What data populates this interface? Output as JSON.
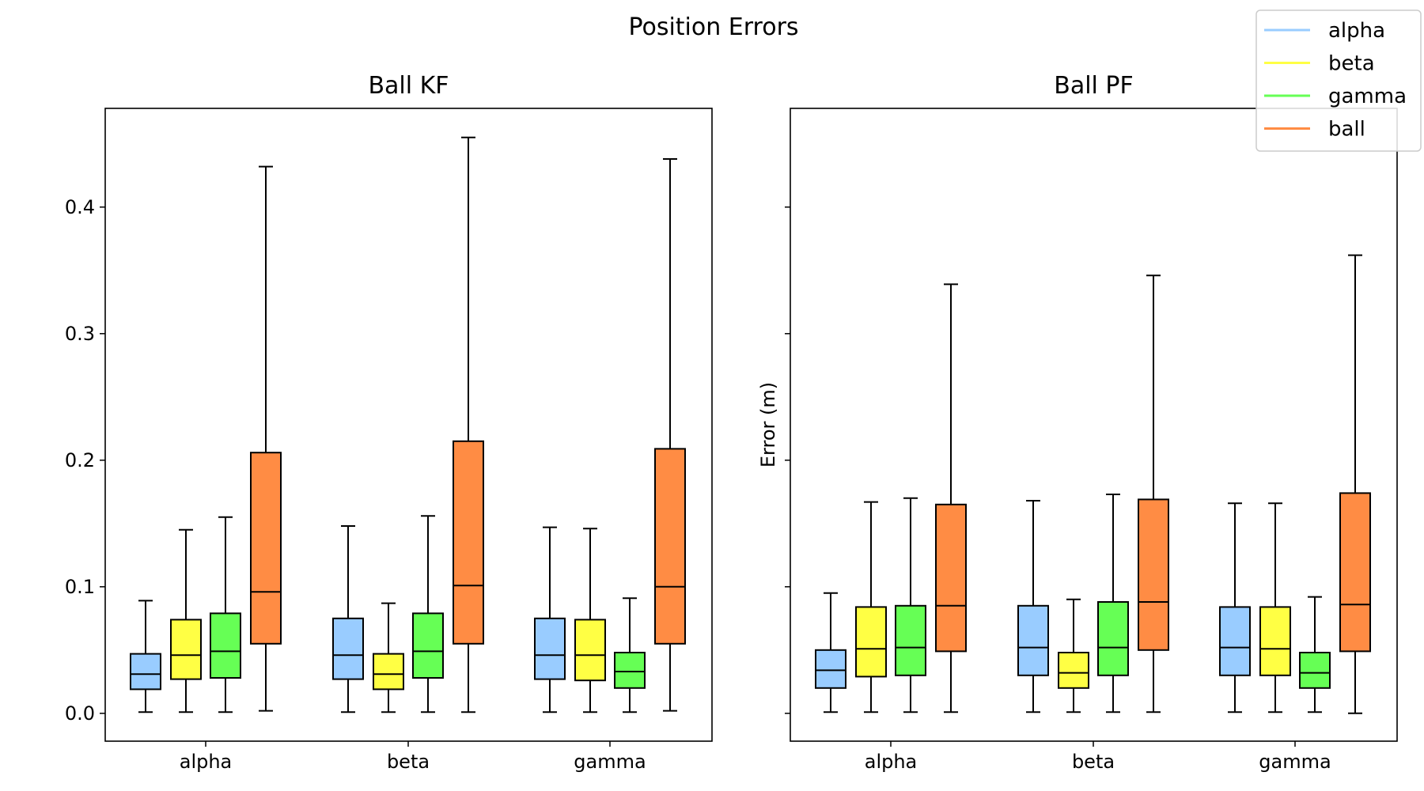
{
  "chart_data": {
    "type": "box",
    "title": "Position Errors",
    "groups": [
      "alpha",
      "beta",
      "gamma"
    ],
    "colors": {
      "alpha": "#99ccff",
      "beta": "#ffff44",
      "gamma": "#66ff55",
      "ball": "#ff8c44"
    },
    "legend": {
      "placement": "top-right",
      "entries": [
        {
          "label": "alpha",
          "color": "#99ccff"
        },
        {
          "label": "beta",
          "color": "#ffff44"
        },
        {
          "label": "gamma",
          "color": "#66ff55"
        },
        {
          "label": "ball",
          "color": "#ff8c44"
        }
      ]
    },
    "ylim": [
      -0.022,
      0.478
    ],
    "yticks": [
      0.0,
      0.1,
      0.2,
      0.3,
      0.4
    ],
    "ytick_labels": [
      "0.0",
      "0.1",
      "0.2",
      "0.3",
      "0.4"
    ],
    "subplots": [
      {
        "title": "Ball KF",
        "ylabel": "",
        "show_ytick_labels": true,
        "data": {
          "alpha": [
            {
              "series": "alpha",
              "whislo": 0.001,
              "q1": 0.019,
              "med": 0.031,
              "q3": 0.047,
              "whishi": 0.089
            },
            {
              "series": "beta",
              "whislo": 0.001,
              "q1": 0.027,
              "med": 0.046,
              "q3": 0.074,
              "whishi": 0.145
            },
            {
              "series": "gamma",
              "whislo": 0.001,
              "q1": 0.028,
              "med": 0.049,
              "q3": 0.079,
              "whishi": 0.155
            },
            {
              "series": "ball",
              "whislo": 0.002,
              "q1": 0.055,
              "med": 0.096,
              "q3": 0.206,
              "whishi": 0.432
            }
          ],
          "beta": [
            {
              "series": "alpha",
              "whislo": 0.001,
              "q1": 0.027,
              "med": 0.046,
              "q3": 0.075,
              "whishi": 0.148
            },
            {
              "series": "beta",
              "whislo": 0.001,
              "q1": 0.019,
              "med": 0.031,
              "q3": 0.047,
              "whishi": 0.087
            },
            {
              "series": "gamma",
              "whislo": 0.001,
              "q1": 0.028,
              "med": 0.049,
              "q3": 0.079,
              "whishi": 0.156
            },
            {
              "series": "ball",
              "whislo": 0.001,
              "q1": 0.055,
              "med": 0.101,
              "q3": 0.215,
              "whishi": 0.455
            }
          ],
          "gamma": [
            {
              "series": "alpha",
              "whislo": 0.001,
              "q1": 0.027,
              "med": 0.046,
              "q3": 0.075,
              "whishi": 0.147
            },
            {
              "series": "beta",
              "whislo": 0.001,
              "q1": 0.026,
              "med": 0.046,
              "q3": 0.074,
              "whishi": 0.146
            },
            {
              "series": "gamma",
              "whislo": 0.001,
              "q1": 0.02,
              "med": 0.033,
              "q3": 0.048,
              "whishi": 0.091
            },
            {
              "series": "ball",
              "whislo": 0.002,
              "q1": 0.055,
              "med": 0.1,
              "q3": 0.209,
              "whishi": 0.438
            }
          ]
        }
      },
      {
        "title": "Ball PF",
        "ylabel": "Error (m)",
        "show_ytick_labels": false,
        "data": {
          "alpha": [
            {
              "series": "alpha",
              "whislo": 0.001,
              "q1": 0.02,
              "med": 0.034,
              "q3": 0.05,
              "whishi": 0.095
            },
            {
              "series": "beta",
              "whislo": 0.001,
              "q1": 0.029,
              "med": 0.051,
              "q3": 0.084,
              "whishi": 0.167
            },
            {
              "series": "gamma",
              "whislo": 0.001,
              "q1": 0.03,
              "med": 0.052,
              "q3": 0.085,
              "whishi": 0.17
            },
            {
              "series": "ball",
              "whislo": 0.001,
              "q1": 0.049,
              "med": 0.085,
              "q3": 0.165,
              "whishi": 0.339
            }
          ],
          "beta": [
            {
              "series": "alpha",
              "whislo": 0.001,
              "q1": 0.03,
              "med": 0.052,
              "q3": 0.085,
              "whishi": 0.168
            },
            {
              "series": "beta",
              "whislo": 0.001,
              "q1": 0.02,
              "med": 0.032,
              "q3": 0.048,
              "whishi": 0.09
            },
            {
              "series": "gamma",
              "whislo": 0.001,
              "q1": 0.03,
              "med": 0.052,
              "q3": 0.088,
              "whishi": 0.173
            },
            {
              "series": "ball",
              "whislo": 0.001,
              "q1": 0.05,
              "med": 0.088,
              "q3": 0.169,
              "whishi": 0.346
            }
          ],
          "gamma": [
            {
              "series": "alpha",
              "whislo": 0.001,
              "q1": 0.03,
              "med": 0.052,
              "q3": 0.084,
              "whishi": 0.166
            },
            {
              "series": "beta",
              "whislo": 0.001,
              "q1": 0.03,
              "med": 0.051,
              "q3": 0.084,
              "whishi": 0.166
            },
            {
              "series": "gamma",
              "whislo": 0.001,
              "q1": 0.02,
              "med": 0.032,
              "q3": 0.048,
              "whishi": 0.092
            },
            {
              "series": "ball",
              "whislo": 0.0,
              "q1": 0.049,
              "med": 0.086,
              "q3": 0.174,
              "whishi": 0.362
            }
          ]
        }
      }
    ]
  }
}
